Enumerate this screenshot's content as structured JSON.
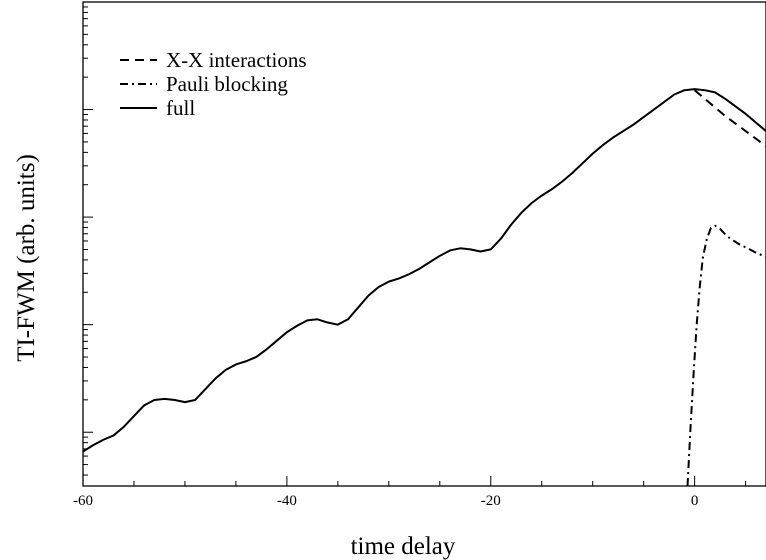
{
  "chart_data": {
    "type": "line",
    "title": "",
    "xlabel": "time delay",
    "ylabel": "TI-FWM (arb. units)",
    "xlim": [
      -60,
      7
    ],
    "ylim": [
      -0.5,
      4.0
    ],
    "y_scale": "log",
    "y_tick_labels_shown": false,
    "grid": false,
    "legend_position": "top-left",
    "x_ticks": [
      {
        "value": -60,
        "label": "-60"
      },
      {
        "value": -40,
        "label": "-40"
      },
      {
        "value": -20,
        "label": "-20"
      },
      {
        "value": 0,
        "label": "0"
      }
    ],
    "y_major_ticks": [
      0,
      1,
      2,
      3
    ],
    "colors": {
      "line": "#000000",
      "background": "#ffffff"
    },
    "series": [
      {
        "name": "X-X interactions",
        "style": "dashed",
        "points": [
          [
            0.0,
            3.18
          ],
          [
            1.0,
            3.1
          ],
          [
            2.0,
            3.02
          ],
          [
            3.0,
            2.94
          ],
          [
            4.0,
            2.87
          ],
          [
            5.0,
            2.8
          ],
          [
            6.0,
            2.73
          ],
          [
            7.0,
            2.66
          ]
        ]
      },
      {
        "name": "Pauli blocking",
        "style": "dashdot",
        "points": [
          [
            -0.7,
            -0.5
          ],
          [
            -0.4,
            0.05
          ],
          [
            -0.1,
            0.55
          ],
          [
            0.2,
            1.0
          ],
          [
            0.5,
            1.35
          ],
          [
            0.8,
            1.62
          ],
          [
            1.2,
            1.8
          ],
          [
            1.6,
            1.9
          ],
          [
            2.0,
            1.92
          ],
          [
            2.5,
            1.89
          ],
          [
            3.0,
            1.84
          ],
          [
            3.5,
            1.8
          ],
          [
            4.0,
            1.77
          ],
          [
            4.5,
            1.74
          ],
          [
            5.0,
            1.72
          ],
          [
            6.0,
            1.67
          ],
          [
            7.0,
            1.63
          ]
        ]
      },
      {
        "name": "full",
        "style": "solid",
        "points": [
          [
            -60.0,
            -0.18
          ],
          [
            -59.0,
            -0.12
          ],
          [
            -58.0,
            -0.07
          ],
          [
            -57.0,
            -0.03
          ],
          [
            -56.0,
            0.05
          ],
          [
            -55.0,
            0.15
          ],
          [
            -54.0,
            0.25
          ],
          [
            -53.0,
            0.3
          ],
          [
            -52.0,
            0.31
          ],
          [
            -51.0,
            0.3
          ],
          [
            -50.0,
            0.28
          ],
          [
            -49.0,
            0.3
          ],
          [
            -48.0,
            0.4
          ],
          [
            -47.0,
            0.5
          ],
          [
            -46.0,
            0.58
          ],
          [
            -45.0,
            0.63
          ],
          [
            -44.0,
            0.66
          ],
          [
            -43.0,
            0.7
          ],
          [
            -42.0,
            0.77
          ],
          [
            -41.0,
            0.85
          ],
          [
            -40.0,
            0.93
          ],
          [
            -39.0,
            0.99
          ],
          [
            -38.0,
            1.04
          ],
          [
            -37.0,
            1.05
          ],
          [
            -36.0,
            1.02
          ],
          [
            -35.0,
            1.0
          ],
          [
            -34.0,
            1.05
          ],
          [
            -33.0,
            1.16
          ],
          [
            -32.0,
            1.27
          ],
          [
            -31.0,
            1.35
          ],
          [
            -30.0,
            1.4
          ],
          [
            -29.0,
            1.43
          ],
          [
            -28.0,
            1.47
          ],
          [
            -27.0,
            1.52
          ],
          [
            -26.0,
            1.58
          ],
          [
            -25.0,
            1.64
          ],
          [
            -24.0,
            1.69
          ],
          [
            -23.0,
            1.71
          ],
          [
            -22.0,
            1.7
          ],
          [
            -21.0,
            1.68
          ],
          [
            -20.0,
            1.7
          ],
          [
            -19.0,
            1.8
          ],
          [
            -18.0,
            1.93
          ],
          [
            -17.0,
            2.04
          ],
          [
            -16.0,
            2.13
          ],
          [
            -15.0,
            2.2
          ],
          [
            -14.0,
            2.26
          ],
          [
            -13.0,
            2.33
          ],
          [
            -12.0,
            2.41
          ],
          [
            -11.0,
            2.5
          ],
          [
            -10.0,
            2.59
          ],
          [
            -9.0,
            2.67
          ],
          [
            -8.0,
            2.74
          ],
          [
            -7.0,
            2.8
          ],
          [
            -6.0,
            2.86
          ],
          [
            -5.0,
            2.93
          ],
          [
            -4.0,
            3.0
          ],
          [
            -3.0,
            3.07
          ],
          [
            -2.0,
            3.14
          ],
          [
            -1.0,
            3.18
          ],
          [
            0.0,
            3.19
          ],
          [
            1.0,
            3.18
          ],
          [
            2.0,
            3.16
          ],
          [
            3.0,
            3.1
          ],
          [
            4.0,
            3.03
          ],
          [
            5.0,
            2.96
          ],
          [
            6.0,
            2.88
          ],
          [
            7.0,
            2.8
          ]
        ]
      }
    ]
  }
}
